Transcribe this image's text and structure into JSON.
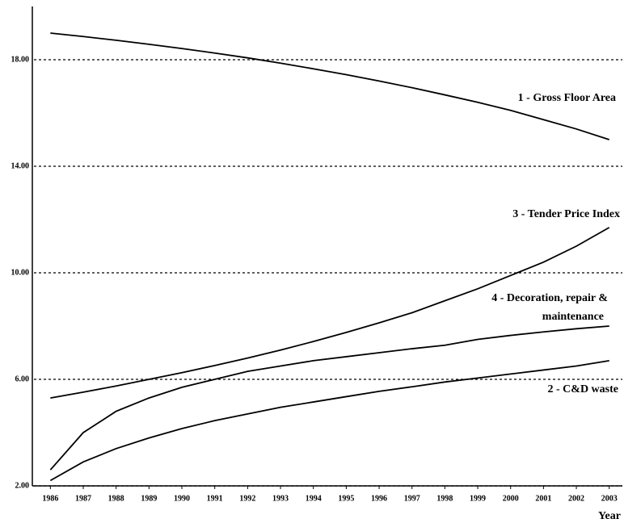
{
  "chart_data": {
    "type": "line",
    "x": [
      1986,
      1987,
      1988,
      1989,
      1990,
      1991,
      1992,
      1993,
      1994,
      1995,
      1996,
      1997,
      1998,
      1999,
      2000,
      2001,
      2002,
      2003
    ],
    "xlim": [
      1985.5,
      2003.4
    ],
    "xticks": [
      1986,
      1987,
      1988,
      1989,
      1990,
      1991,
      1992,
      1993,
      1994,
      1995,
      1996,
      1997,
      1998,
      1999,
      2000,
      2001,
      2002,
      2003
    ],
    "xlabel": "Year",
    "ylim": [
      2,
      20
    ],
    "yticks": [
      {
        "value": 2,
        "label": "2.00"
      },
      {
        "value": 6,
        "label": "6.00"
      },
      {
        "value": 10,
        "label": "10.00"
      },
      {
        "value": 14,
        "label": "14.00"
      },
      {
        "value": 18,
        "label": "18.00"
      }
    ],
    "grid": true,
    "series": [
      {
        "color": "#000000",
        "values": [
          19.0,
          18.87,
          18.73,
          18.58,
          18.42,
          18.25,
          18.07,
          17.87,
          17.66,
          17.44,
          17.2,
          16.95,
          16.68,
          16.4,
          16.1,
          15.75,
          15.4,
          15.0
        ]
      },
      {
        "color": "#000000",
        "values": [
          2.2,
          2.9,
          3.4,
          3.8,
          4.15,
          4.45,
          4.7,
          4.95,
          5.15,
          5.35,
          5.55,
          5.72,
          5.9,
          6.05,
          6.2,
          6.35,
          6.5,
          6.7
        ]
      },
      {
        "color": "#000000",
        "values": [
          5.3,
          5.52,
          5.75,
          6.0,
          6.25,
          6.52,
          6.8,
          7.1,
          7.42,
          7.76,
          8.12,
          8.5,
          8.95,
          9.4,
          9.9,
          10.4,
          11.0,
          11.7
        ]
      },
      {
        "color": "#000000",
        "values": [
          2.6,
          4.0,
          4.8,
          5.3,
          5.7,
          6.0,
          6.3,
          6.5,
          6.7,
          6.85,
          7.0,
          7.15,
          7.28,
          7.5,
          7.65,
          7.78,
          7.9,
          8.0
        ]
      }
    ],
    "annotations": [
      "1 - Gross Floor Area",
      "3 - Tender Price Index",
      "4 - Decoration, repair &",
      "maintenance",
      "2 - C&D waste"
    ]
  }
}
